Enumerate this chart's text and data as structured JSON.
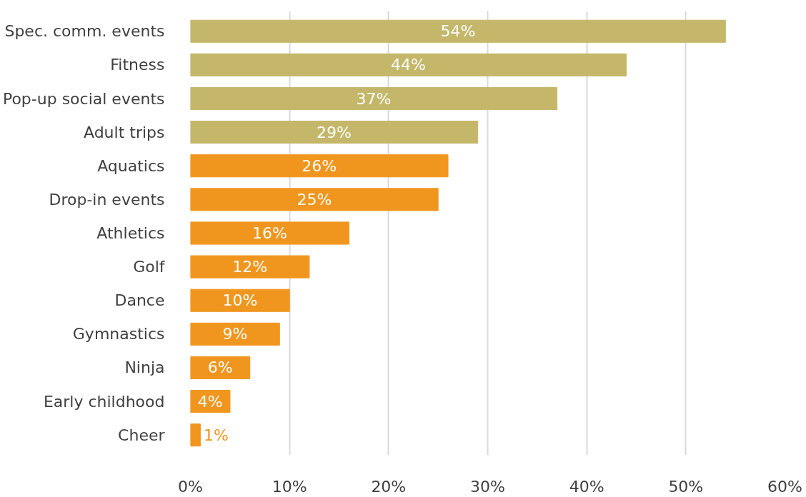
{
  "chart_data": {
    "type": "bar",
    "orientation": "horizontal",
    "categories": [
      "Spec. comm. events",
      "Fitness",
      "Pop-up social events",
      "Adult trips",
      "Aquatics",
      "Drop-in events",
      "Athletics",
      "Golf",
      "Dance",
      "Gymnastics",
      "Ninja",
      "Early childhood",
      "Cheer"
    ],
    "values": [
      54,
      44,
      37,
      29,
      26,
      25,
      16,
      12,
      10,
      9,
      6,
      4,
      1
    ],
    "colors": [
      "#c4b76a",
      "#c4b76a",
      "#c4b76a",
      "#c4b76a",
      "#f0961e",
      "#f0961e",
      "#f0961e",
      "#f0961e",
      "#f0961e",
      "#f0961e",
      "#f0961e",
      "#f0961e",
      "#f0961e"
    ],
    "value_labels": [
      "54%",
      "44%",
      "37%",
      "29%",
      "26%",
      "25%",
      "16%",
      "12%",
      "10%",
      "9%",
      "6%",
      "4%",
      "1%"
    ],
    "xlim": [
      0,
      60
    ],
    "xticks": [
      {
        "value": 0,
        "label": "0%"
      },
      {
        "value": 10,
        "label": "10%"
      },
      {
        "value": 20,
        "label": "20%"
      },
      {
        "value": 30,
        "label": "30%"
      },
      {
        "value": 40,
        "label": "40%"
      },
      {
        "value": 50,
        "label": "50%"
      },
      {
        "value": 60,
        "label": "60%"
      }
    ],
    "grid": "x"
  }
}
